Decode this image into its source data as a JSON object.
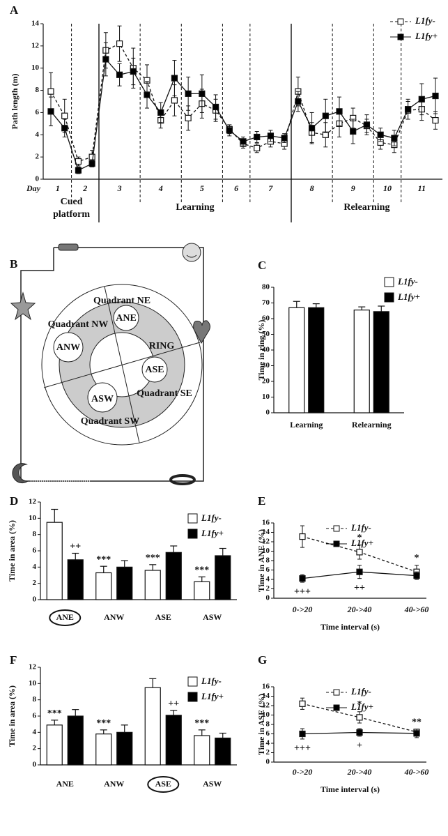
{
  "chart_data": [
    {
      "type": "line",
      "label": "A",
      "ylabel": "Path length (m)",
      "xlabel": "Day",
      "categories": [
        null,
        null,
        null,
        null,
        null,
        null,
        null,
        null,
        null,
        null,
        null,
        null,
        null,
        null,
        null,
        null,
        null,
        null,
        null,
        null,
        null,
        null,
        null,
        null,
        null,
        null,
        null,
        null,
        null
      ],
      "days": [
        "1",
        "2",
        "3",
        "4",
        "5",
        "6",
        "7",
        "8",
        "9",
        "10",
        "11"
      ],
      "phases": [
        [
          "Cued",
          "platform"
        ],
        "Learning",
        "Relearning"
      ],
      "ylim": [
        0,
        14
      ],
      "yticks": [
        0,
        2,
        4,
        6,
        8,
        10,
        12,
        14
      ],
      "legend": "top-right",
      "series": [
        {
          "name": "L1fy-",
          "color": "#ffffff",
          "line_style": "dashed",
          "values": [
            7.9,
            5.7,
            1.6,
            2.0,
            11.6,
            12.2,
            10.0,
            8.9,
            5.3,
            7.1,
            5.5,
            6.8,
            6.2,
            4.5,
            3.2,
            2.8,
            3.4,
            3.2,
            7.9,
            4.2,
            4.0,
            5.0,
            5.5,
            4.8,
            3.3,
            3.1,
            6.2,
            6.3,
            5.3
          ],
          "errors": [
            1.7,
            1.5,
            0.4,
            0.6,
            1.6,
            1.6,
            1.8,
            1.4,
            0.7,
            1.4,
            1.1,
            1.3,
            1.0,
            0.4,
            0.4,
            0.4,
            0.5,
            0.5,
            1.3,
            0.9,
            1.1,
            1.2,
            0.9,
            0.6,
            0.6,
            0.7,
            0.8,
            1.0,
            0.8
          ]
        },
        {
          "name": "L1fy+",
          "color": "#000000",
          "line_style": "solid",
          "values": [
            6.1,
            4.6,
            0.8,
            1.4,
            10.8,
            9.4,
            9.7,
            7.6,
            6.0,
            9.1,
            7.7,
            7.7,
            6.5,
            4.4,
            3.4,
            3.8,
            3.9,
            3.7,
            7.0,
            4.6,
            5.7,
            6.1,
            4.3,
            4.9,
            4.0,
            3.7,
            6.3,
            7.2,
            7.5
          ],
          "errors": [
            1.3,
            0.8,
            0.3,
            0.3,
            1.5,
            1.0,
            1.2,
            1.2,
            0.9,
            1.6,
            1.5,
            1.7,
            1.1,
            0.5,
            0.4,
            0.5,
            0.5,
            0.4,
            0.9,
            1.4,
            1.5,
            1.3,
            1.1,
            0.9,
            0.6,
            0.7,
            0.9,
            1.4,
            1.6
          ]
        }
      ]
    },
    {
      "type": "bar",
      "label": "C",
      "ylabel": "Time in ring (%)",
      "categories": [
        "Learning",
        "Relearning"
      ],
      "ylim": [
        0,
        80
      ],
      "yticks": [
        0,
        10,
        20,
        30,
        40,
        50,
        60,
        70,
        80
      ],
      "legend": "top-right",
      "series": [
        {
          "name": "L1fy-",
          "color": "#ffffff",
          "values": [
            67,
            65.5
          ],
          "errors": [
            4,
            2
          ]
        },
        {
          "name": "L1fy+",
          "color": "#000000",
          "values": [
            67,
            64.5
          ],
          "errors": [
            2.5,
            3.5
          ]
        }
      ]
    },
    {
      "type": "bar",
      "label": "D",
      "ylabel": "Time in area (%)",
      "categories": [
        "ANE",
        "ANW",
        "ASE",
        "ASW"
      ],
      "highlight_index": 0,
      "ylim": [
        0,
        12
      ],
      "yticks": [
        0,
        2,
        4,
        6,
        8,
        10,
        12
      ],
      "legend": "top-right",
      "series": [
        {
          "name": "L1fy-",
          "color": "#ffffff",
          "values": [
            9.5,
            3.3,
            3.6,
            2.2
          ],
          "errors": [
            1.6,
            0.8,
            0.7,
            0.6
          ],
          "markers": [
            null,
            "***",
            "***",
            "***"
          ]
        },
        {
          "name": "L1fy+",
          "color": "#000000",
          "values": [
            4.9,
            4.0,
            5.8,
            5.4
          ],
          "errors": [
            0.8,
            0.8,
            0.8,
            0.9
          ],
          "markers": [
            "++",
            null,
            null,
            null
          ]
        }
      ]
    },
    {
      "type": "line",
      "label": "E",
      "ylabel": "Time in ANE (%)",
      "xlabel": "Time interval (s)",
      "categories": [
        "0->20",
        "20->40",
        "40->60"
      ],
      "ylim": [
        0,
        16
      ],
      "yticks": [
        0,
        2,
        4,
        6,
        8,
        10,
        12,
        14,
        16
      ],
      "legend": "top-right",
      "series": [
        {
          "name": "L1fy-",
          "color": "#ffffff",
          "line_style": "dashed",
          "values": [
            13.1,
            9.8,
            5.6
          ],
          "errors": [
            2.3,
            1.5,
            1.4
          ],
          "markers": [
            null,
            "*",
            "*"
          ]
        },
        {
          "name": "L1fy+",
          "color": "#000000",
          "line_style": "solid",
          "values": [
            4.2,
            5.6,
            4.8
          ],
          "errors": [
            0.8,
            1.4,
            0.8
          ],
          "markers": [
            "+++",
            "++",
            null
          ]
        }
      ]
    },
    {
      "type": "bar",
      "label": "F",
      "ylabel": "Time in area (%)",
      "categories": [
        "ANE",
        "ANW",
        "ASE",
        "ASW"
      ],
      "highlight_index": 2,
      "ylim": [
        0,
        12
      ],
      "yticks": [
        0,
        2,
        4,
        6,
        8,
        10,
        12
      ],
      "legend": "top-right",
      "series": [
        {
          "name": "L1fy-",
          "color": "#ffffff",
          "values": [
            4.9,
            3.8,
            9.5,
            3.6
          ],
          "errors": [
            0.6,
            0.5,
            1.1,
            0.7
          ],
          "markers": [
            "***",
            "***",
            null,
            "***"
          ]
        },
        {
          "name": "L1fy+",
          "color": "#000000",
          "values": [
            6.0,
            4.0,
            6.1,
            3.3
          ],
          "errors": [
            0.8,
            0.9,
            0.6,
            0.6
          ],
          "markers": [
            null,
            null,
            "++",
            null
          ]
        }
      ]
    },
    {
      "type": "line",
      "label": "G",
      "ylabel": "Time in ASE (%)",
      "xlabel": "Time interval (s)",
      "categories": [
        "0->20",
        "20->40",
        "40->60"
      ],
      "ylim": [
        0,
        16
      ],
      "yticks": [
        0,
        2,
        4,
        6,
        8,
        10,
        12,
        14,
        16
      ],
      "legend": "top-right",
      "series": [
        {
          "name": "L1fy-",
          "color": "#ffffff",
          "line_style": "dashed",
          "values": [
            12.4,
            9.5,
            6.4
          ],
          "errors": [
            1.2,
            1.2,
            0.5
          ],
          "markers": [
            null,
            "*",
            "**"
          ]
        },
        {
          "name": "L1fy+",
          "color": "#000000",
          "line_style": "solid",
          "values": [
            6.0,
            6.3,
            6.1
          ],
          "errors": [
            1.1,
            0.8,
            0.9
          ],
          "markers": [
            "+++",
            "+",
            null
          ]
        }
      ]
    }
  ],
  "diagram": {
    "label": "B",
    "quadrants": [
      "Quadrant NE",
      "Quadrant NW",
      "Quadrant SE",
      "Quadrant SW"
    ],
    "areas": [
      "ANE",
      "ANW",
      "ASE",
      "ASW"
    ],
    "ring": "RING"
  }
}
